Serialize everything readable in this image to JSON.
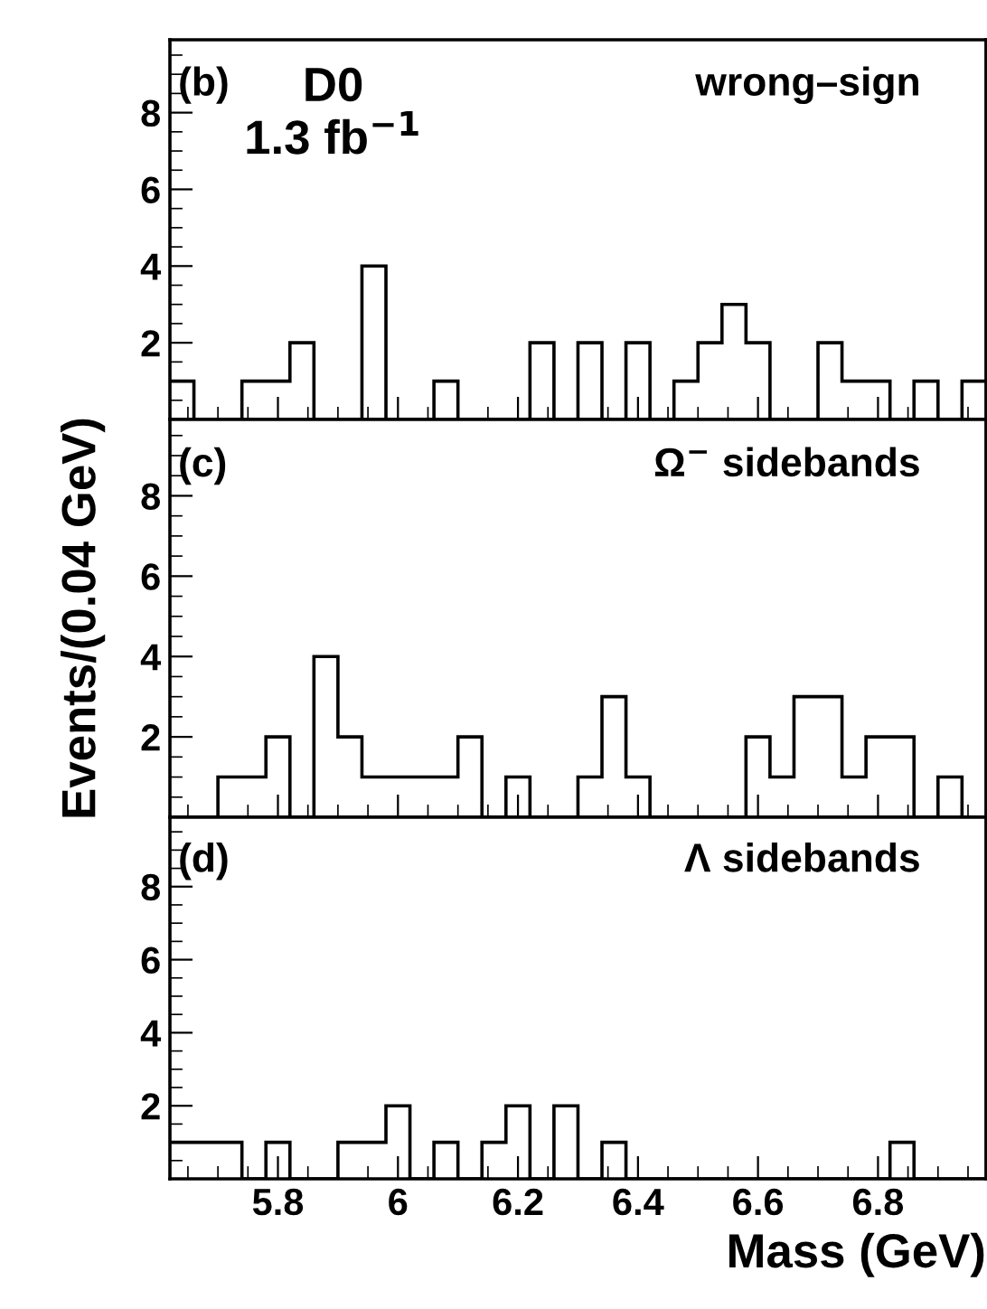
{
  "chart_data": [
    {
      "type": "histogram",
      "bins": [
        5.62,
        5.66,
        5.7,
        5.74,
        5.78,
        5.82,
        5.86,
        5.9,
        5.94,
        5.98,
        6.02,
        6.06,
        6.1,
        6.14,
        6.18,
        6.22,
        6.26,
        6.3,
        6.34,
        6.38,
        6.42,
        6.46,
        6.5,
        6.54,
        6.58,
        6.62,
        6.66,
        6.7,
        6.74,
        6.78,
        6.82,
        6.86,
        6.9,
        6.94,
        6.98
      ],
      "values": [
        1,
        0,
        0,
        1,
        1,
        2,
        0,
        0,
        4,
        0,
        0,
        1,
        0,
        0,
        0,
        2,
        0,
        2,
        0,
        2,
        0,
        1,
        2,
        3,
        2,
        0,
        0,
        2,
        1,
        1,
        0,
        1,
        0,
        1
      ],
      "color": "#000000",
      "xlim": [
        5.62,
        6.98
      ],
      "xticks": [
        5.8,
        6,
        6.2,
        6.4,
        6.6,
        6.8
      ],
      "ylim": [
        0,
        9.9
      ],
      "yticks": [
        2,
        4,
        6,
        8
      ],
      "tick_labels": "y",
      "annotations": [
        "(b)",
        "D0",
        "1.3 fb$^{−1}$",
        "wrong–sign"
      ]
    },
    {
      "type": "histogram",
      "bins": [
        5.62,
        5.66,
        5.7,
        5.74,
        5.78,
        5.82,
        5.86,
        5.9,
        5.94,
        5.98,
        6.02,
        6.06,
        6.1,
        6.14,
        6.18,
        6.22,
        6.26,
        6.3,
        6.34,
        6.38,
        6.42,
        6.46,
        6.5,
        6.54,
        6.58,
        6.62,
        6.66,
        6.7,
        6.74,
        6.78,
        6.82,
        6.86,
        6.9,
        6.94,
        6.98
      ],
      "values": [
        0,
        0,
        1,
        1,
        2,
        0,
        4,
        2,
        1,
        1,
        1,
        1,
        2,
        0,
        1,
        0,
        0,
        1,
        3,
        1,
        0,
        0,
        0,
        0,
        2,
        1,
        3,
        3,
        1,
        2,
        2,
        0,
        1,
        0
      ],
      "color": "#000000",
      "xlim": [
        5.62,
        6.98
      ],
      "xticks": [
        5.8,
        6,
        6.2,
        6.4,
        6.6,
        6.8
      ],
      "ylim": [
        0,
        9.9
      ],
      "yticks": [
        2,
        4,
        6,
        8
      ],
      "tick_labels": "y",
      "ylabel": "Events/(0.04 GeV)",
      "annotations": [
        "(c)",
        "Ω$^{−}$ sidebands"
      ]
    },
    {
      "type": "histogram",
      "bins": [
        5.62,
        5.66,
        5.7,
        5.74,
        5.78,
        5.82,
        5.86,
        5.9,
        5.94,
        5.98,
        6.02,
        6.06,
        6.1,
        6.14,
        6.18,
        6.22,
        6.26,
        6.3,
        6.34,
        6.38,
        6.42,
        6.46,
        6.5,
        6.54,
        6.58,
        6.62,
        6.66,
        6.7,
        6.74,
        6.78,
        6.82,
        6.86,
        6.9,
        6.94,
        6.98
      ],
      "values": [
        1,
        1,
        1,
        0,
        1,
        0,
        0,
        1,
        1,
        2,
        0,
        1,
        0,
        1,
        2,
        0,
        2,
        0,
        1,
        0,
        0,
        0,
        0,
        0,
        0,
        0,
        0,
        0,
        0,
        0,
        1,
        0,
        0,
        0
      ],
      "color": "#000000",
      "xlim": [
        5.62,
        6.98
      ],
      "xticks": [
        5.8,
        6,
        6.2,
        6.4,
        6.6,
        6.8
      ],
      "ylim": [
        0,
        9.9
      ],
      "yticks": [
        2,
        4,
        6,
        8
      ],
      "xlabel": "Mass (GeV)",
      "annotations": [
        "(d)",
        "Λ sidebands"
      ]
    }
  ]
}
